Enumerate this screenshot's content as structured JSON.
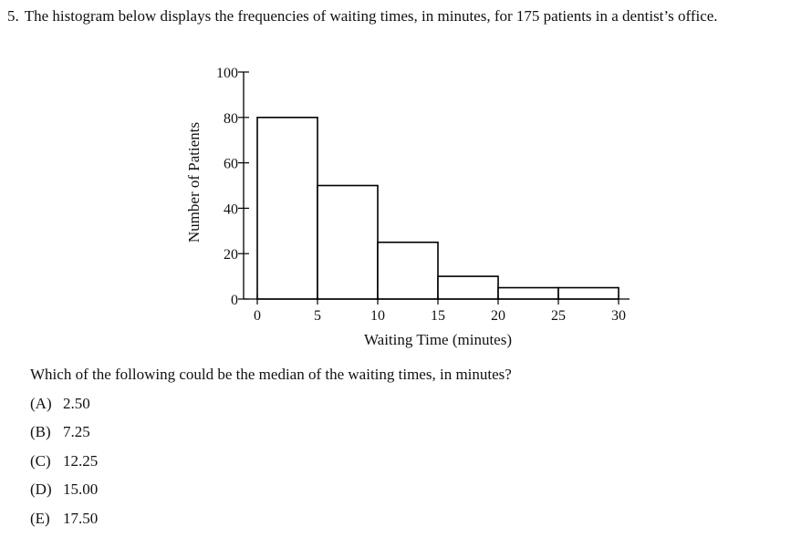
{
  "question": {
    "number": "5.",
    "stem": "The histogram below displays the frequencies of waiting times, in minutes, for 175 patients in a dentist’s office.",
    "prompt": "Which of the following could be the median of the waiting times, in minutes?"
  },
  "choices": [
    {
      "letter": "(A)",
      "value": "2.50"
    },
    {
      "letter": "(B)",
      "value": "7.25"
    },
    {
      "letter": "(C)",
      "value": "12.25"
    },
    {
      "letter": "(D)",
      "value": "15.00"
    },
    {
      "letter": "(E)",
      "value": "17.50"
    }
  ],
  "chart_data": {
    "type": "bar",
    "title": "",
    "xlabel": "Waiting Time (minutes)",
    "ylabel": "Number of Patients",
    "bin_edges": [
      0,
      5,
      10,
      15,
      20,
      25,
      30
    ],
    "values": [
      80,
      50,
      25,
      10,
      5,
      5
    ],
    "x_ticks": [
      0,
      5,
      10,
      15,
      20,
      25,
      30
    ],
    "y_ticks": [
      0,
      20,
      40,
      60,
      80,
      100
    ],
    "xlim": [
      0,
      30
    ],
    "ylim": [
      0,
      100
    ],
    "grid": false,
    "colors": {
      "bar_fill": "#ffffff",
      "bar_stroke": "#000000"
    }
  }
}
